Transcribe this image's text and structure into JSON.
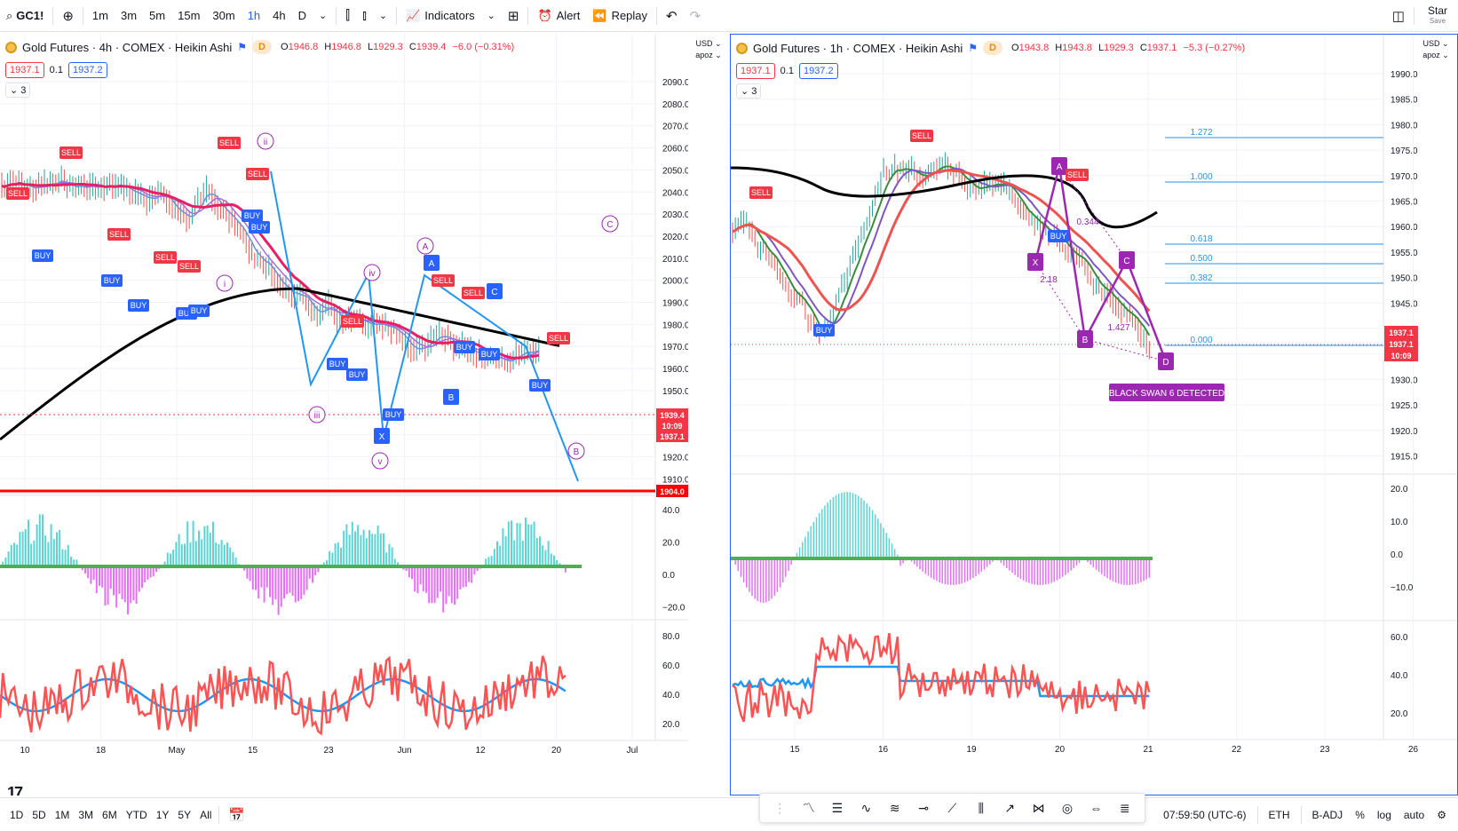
{
  "toolbar": {
    "symbol": "GC1!",
    "add_icon": "plus-circle-icon",
    "intervals": [
      "1m",
      "3m",
      "5m",
      "15m",
      "30m",
      "1h",
      "4h",
      "D"
    ],
    "active_interval": "1h",
    "indicators_label": "Indicators",
    "alert_label": "Alert",
    "replay_label": "Replay",
    "star_label": "Star",
    "save_label": "Save"
  },
  "left_chart": {
    "title": "Gold Futures · 4h · COMEX · Heikin Ashi",
    "d_badge": "D",
    "ohlc": {
      "o": "1946.8",
      "h": "1946.8",
      "l": "1929.3",
      "c": "1939.4",
      "chg": "−6.0 (−0.31%)"
    },
    "sell_price": "1937.1",
    "spread": "0.1",
    "buy_price": "1937.2",
    "collapse": "3",
    "currency": "USD",
    "scale": "apoz",
    "price_labels": [
      "2090.0",
      "2080.0",
      "2070.0",
      "2060.0",
      "2050.0",
      "2040.0",
      "2030.0",
      "2020.0",
      "2010.0",
      "2000.0",
      "1990.0",
      "1980.0",
      "1970.0",
      "1960.0",
      "1950.0",
      "1940.0",
      "1930.0",
      "1920.0",
      "1910.0"
    ],
    "last_price": "1939.4",
    "countdown": "10:09",
    "bid": "1937.1",
    "line_price": "1904.0",
    "osc_labels": [
      "40.0",
      "20.0",
      "0.0",
      "−20.0"
    ],
    "rsi_labels": [
      "80.0",
      "60.0",
      "40.0",
      "20.0"
    ],
    "time_labels": [
      "10",
      "18",
      "May",
      "15",
      "23",
      "Jun",
      "12",
      "20",
      "Jul"
    ],
    "wave_labels": [
      "ii",
      "i",
      "iii",
      "iv",
      "v",
      "A",
      "B",
      "C"
    ],
    "signals": [
      "SELL",
      "BUY",
      "X",
      "A",
      "B",
      "C"
    ]
  },
  "right_chart": {
    "title": "Gold Futures · 1h · COMEX · Heikin Ashi",
    "d_badge": "D",
    "ohlc": {
      "o": "1943.8",
      "h": "1943.8",
      "l": "1929.3",
      "c": "1937.1",
      "chg": "−5.3 (−0.27%)"
    },
    "sell_price": "1937.1",
    "spread": "0.1",
    "buy_price": "1937.2",
    "collapse": "3",
    "currency": "USD",
    "scale": "apoz",
    "price_labels": [
      "1990.0",
      "1985.0",
      "1980.0",
      "1975.0",
      "1970.0",
      "1965.0",
      "1960.0",
      "1955.0",
      "1950.0",
      "1945.0",
      "1940.0",
      "1935.0",
      "1930.0",
      "1925.0",
      "1920.0",
      "1915.0"
    ],
    "last_price": "1937.1",
    "bid": "1937.1",
    "countdown": "10:09",
    "fib_levels": [
      "1.272",
      "1.000",
      "0.618",
      "0.500",
      "0.382",
      "0.000"
    ],
    "pattern_points": [
      "X",
      "A",
      "B",
      "C",
      "D"
    ],
    "ratio_labels": [
      "2.18",
      "0.344",
      "1.427"
    ],
    "pattern_banner": "BLACK SWAN 6 DETECTED",
    "osc_labels": [
      "20.0",
      "10.0",
      "0.0",
      "−10.0"
    ],
    "rsi_labels": [
      "60.0",
      "40.0",
      "20.0"
    ],
    "time_labels": [
      "15",
      "16",
      "19",
      "20",
      "21",
      "22",
      "23",
      "26"
    ]
  },
  "bottombar": {
    "ranges": [
      "1D",
      "5D",
      "1M",
      "3M",
      "6M",
      "YTD",
      "1Y",
      "5Y",
      "All"
    ],
    "clock": "07:59:50 (UTC-6)",
    "session": "ETH",
    "adjust": "B-ADJ",
    "pct": "%",
    "log": "log",
    "auto": "auto"
  },
  "colors": {
    "sell": "#f23645",
    "buy": "#2962ff",
    "pattern": "#9c27b0",
    "accent": "#2962ff",
    "ma_black": "#000000",
    "ma_red": "#e91e63",
    "osc_up": "#22c8c8",
    "osc_down": "#e040fb",
    "rsi_red": "#ff5252",
    "rsi_blue": "#2196f3"
  }
}
